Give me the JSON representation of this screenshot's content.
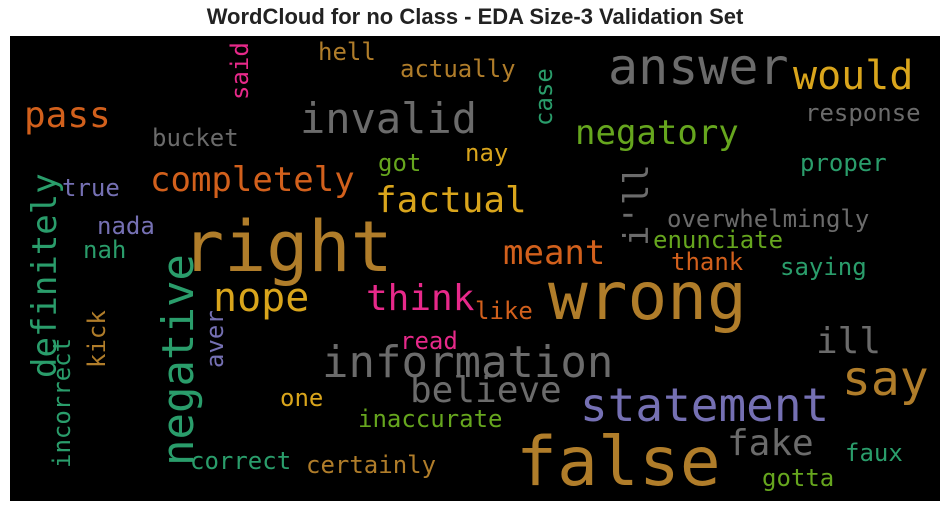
{
  "title": "WordCloud for no Class - EDA Size-3 Validation Set",
  "colors": {
    "bronze": "#b07d2a",
    "gray": "#6b6b6b",
    "gold": "#d9a51c",
    "green": "#2a9d6b",
    "orange": "#d2601c",
    "purple": "#7570b3",
    "lime": "#66a61e",
    "pink": "#e7298a"
  },
  "words": [
    {
      "text": "answer",
      "color": "gray"
    },
    {
      "text": "would",
      "color": "gold"
    },
    {
      "text": "hell",
      "color": "bronze"
    },
    {
      "text": "actually",
      "color": "bronze"
    },
    {
      "text": "said",
      "color": "pink"
    },
    {
      "text": "case",
      "color": "green"
    },
    {
      "text": "response",
      "color": "gray"
    },
    {
      "text": "pass",
      "color": "orange"
    },
    {
      "text": "invalid",
      "color": "gray"
    },
    {
      "text": "negatory",
      "color": "lime"
    },
    {
      "text": "bucket",
      "color": "gray"
    },
    {
      "text": "got",
      "color": "lime"
    },
    {
      "text": "nay",
      "color": "gold"
    },
    {
      "text": "proper",
      "color": "green"
    },
    {
      "text": "completely",
      "color": "orange"
    },
    {
      "text": "true",
      "color": "purple"
    },
    {
      "text": "definitely",
      "color": "green"
    },
    {
      "text": "factual",
      "color": "gold"
    },
    {
      "text": "i'll",
      "color": "gray"
    },
    {
      "text": "overwhelmingly",
      "color": "gray"
    },
    {
      "text": "nada",
      "color": "purple"
    },
    {
      "text": "right",
      "color": "bronze"
    },
    {
      "text": "nah",
      "color": "green"
    },
    {
      "text": "enunciate",
      "color": "lime"
    },
    {
      "text": "meant",
      "color": "orange"
    },
    {
      "text": "thank",
      "color": "orange"
    },
    {
      "text": "saying",
      "color": "green"
    },
    {
      "text": "wrong",
      "color": "bronze"
    },
    {
      "text": "nope",
      "color": "gold"
    },
    {
      "text": "think",
      "color": "pink"
    },
    {
      "text": "negative",
      "color": "green"
    },
    {
      "text": "like",
      "color": "orange"
    },
    {
      "text": "kick",
      "color": "bronze"
    },
    {
      "text": "aver",
      "color": "purple"
    },
    {
      "text": "ill",
      "color": "gray"
    },
    {
      "text": "read",
      "color": "pink"
    },
    {
      "text": "information",
      "color": "gray"
    },
    {
      "text": "incorrect",
      "color": "green"
    },
    {
      "text": "say",
      "color": "bronze"
    },
    {
      "text": "believe",
      "color": "gray"
    },
    {
      "text": "one",
      "color": "gold"
    },
    {
      "text": "statement",
      "color": "purple"
    },
    {
      "text": "inaccurate",
      "color": "lime"
    },
    {
      "text": "fake",
      "color": "gray"
    },
    {
      "text": "correct",
      "color": "green"
    },
    {
      "text": "certainly",
      "color": "bronze"
    },
    {
      "text": "false",
      "color": "bronze"
    },
    {
      "text": "faux",
      "color": "green"
    },
    {
      "text": "gotta",
      "color": "lime"
    }
  ]
}
